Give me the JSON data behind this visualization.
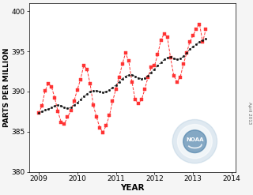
{
  "xlabel": "YEAR",
  "ylabel": "PARTS PER MILLION",
  "xlim": [
    2008.75,
    2014.1
  ],
  "ylim": [
    380,
    401
  ],
  "yticks": [
    380,
    385,
    390,
    395,
    400
  ],
  "xticks": [
    2009,
    2010,
    2011,
    2012,
    2013,
    2014
  ],
  "bg_color": "#f5f5f5",
  "plot_bg_color": "#ffffff",
  "red_color": "#ff3333",
  "black_color": "#111111",
  "noaa_text": "April 2013",
  "monthly_x": [
    2009.0,
    2009.083,
    2009.167,
    2009.25,
    2009.333,
    2009.417,
    2009.5,
    2009.583,
    2009.667,
    2009.75,
    2009.833,
    2009.917,
    2010.0,
    2010.083,
    2010.167,
    2010.25,
    2010.333,
    2010.417,
    2010.5,
    2010.583,
    2010.667,
    2010.75,
    2010.833,
    2010.917,
    2011.0,
    2011.083,
    2011.167,
    2011.25,
    2011.333,
    2011.417,
    2011.5,
    2011.583,
    2011.667,
    2011.75,
    2011.833,
    2011.917,
    2012.0,
    2012.083,
    2012.167,
    2012.25,
    2012.333,
    2012.417,
    2012.5,
    2012.583,
    2012.667,
    2012.75,
    2012.833,
    2012.917,
    2013.0,
    2013.083,
    2013.167,
    2013.25,
    2013.333
  ],
  "monthly_y": [
    387.3,
    388.2,
    390.1,
    391.0,
    390.6,
    389.2,
    387.5,
    386.2,
    386.0,
    386.8,
    387.6,
    388.8,
    390.2,
    391.5,
    393.2,
    392.8,
    391.0,
    388.3,
    386.8,
    385.5,
    384.9,
    385.8,
    387.0,
    388.8,
    390.3,
    391.8,
    393.4,
    394.8,
    393.8,
    391.2,
    389.0,
    388.5,
    389.0,
    390.3,
    391.8,
    393.0,
    393.2,
    394.6,
    396.4,
    397.2,
    396.8,
    394.2,
    392.0,
    391.2,
    391.8,
    393.4,
    394.8,
    396.2,
    397.0,
    397.8,
    398.4,
    396.2,
    397.8
  ],
  "trend_x": [
    2009.0,
    2009.083,
    2009.167,
    2009.25,
    2009.333,
    2009.417,
    2009.5,
    2009.583,
    2009.667,
    2009.75,
    2009.833,
    2009.917,
    2010.0,
    2010.083,
    2010.167,
    2010.25,
    2010.333,
    2010.417,
    2010.5,
    2010.583,
    2010.667,
    2010.75,
    2010.833,
    2010.917,
    2011.0,
    2011.083,
    2011.167,
    2011.25,
    2011.333,
    2011.417,
    2011.5,
    2011.583,
    2011.667,
    2011.75,
    2011.833,
    2011.917,
    2012.0,
    2012.083,
    2012.167,
    2012.25,
    2012.333,
    2012.417,
    2012.5,
    2012.583,
    2012.667,
    2012.75,
    2012.833,
    2012.917,
    2013.0,
    2013.083,
    2013.167,
    2013.25,
    2013.333
  ],
  "trend_y": [
    387.3,
    387.5,
    387.7,
    387.8,
    388.0,
    388.2,
    388.3,
    388.2,
    388.0,
    387.9,
    388.0,
    388.3,
    388.6,
    389.0,
    389.4,
    389.7,
    390.0,
    390.1,
    390.1,
    390.0,
    389.9,
    390.0,
    390.2,
    390.5,
    390.8,
    391.2,
    391.6,
    391.9,
    392.1,
    392.1,
    391.9,
    391.7,
    391.6,
    391.7,
    392.0,
    392.4,
    392.8,
    393.2,
    393.6,
    394.0,
    394.2,
    394.3,
    394.1,
    394.0,
    394.1,
    394.4,
    394.8,
    395.3,
    395.6,
    395.9,
    396.2,
    396.4,
    396.6
  ]
}
